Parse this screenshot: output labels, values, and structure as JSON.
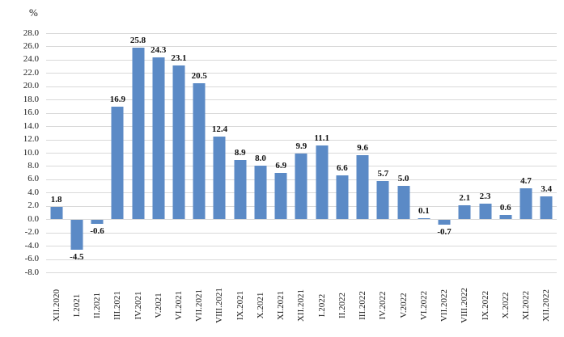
{
  "chart_data": {
    "type": "bar",
    "title": "",
    "xlabel": "",
    "ylabel": "%",
    "categories": [
      "XII.2020",
      "I.2021",
      "II.2021",
      "III.2021",
      "IV.2021",
      "V.2021",
      "VI.2021",
      "VII.2021",
      "VIII.2021",
      "IX.2021",
      "X.2021",
      "XI.2021",
      "XII.2021",
      "I.2022",
      "II.2022",
      "III.2022",
      "IV.2022",
      "V.2022",
      "VI.2022",
      "VII.2022",
      "VIII.2022",
      "IX.2022",
      "X.2022",
      "XI.2022",
      "XII.2022"
    ],
    "values": [
      1.8,
      -4.5,
      -0.6,
      16.9,
      25.8,
      24.3,
      23.1,
      20.5,
      12.4,
      8.9,
      8.0,
      6.9,
      9.9,
      11.1,
      6.6,
      9.6,
      5.7,
      5.0,
      0.1,
      -0.7,
      2.1,
      2.3,
      0.6,
      4.7,
      3.4
    ],
    "data_labels_visible": true,
    "ylim": [
      -8.0,
      28.0
    ],
    "ytick_step": 2.0,
    "grid": "horizontal",
    "legend_position": "none",
    "bar_color": "#5b8ac6",
    "gridline_color": "#d9d9d9",
    "text_color": "#1a1a1a"
  }
}
